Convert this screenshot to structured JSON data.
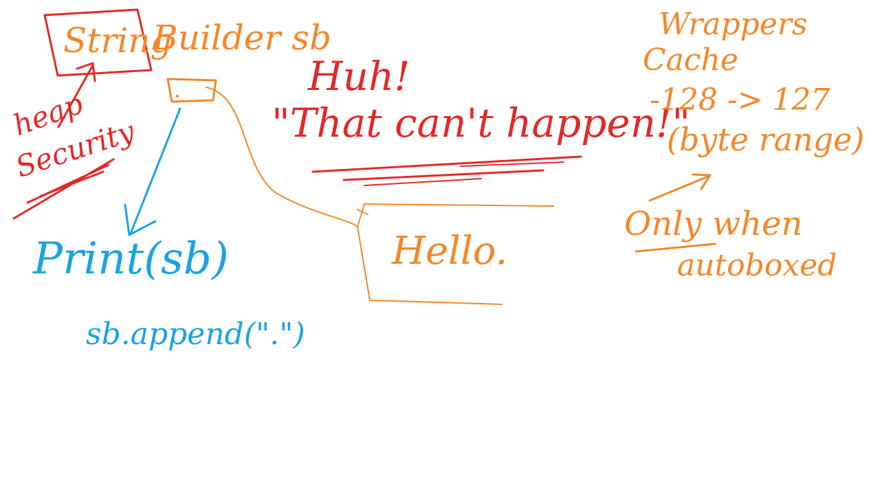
{
  "colors": {
    "orange": "#f5872a",
    "red": "#e42828",
    "blue": "#1aa3e0",
    "background": "#ffffff"
  },
  "left": {
    "type_word": "String",
    "builder_text": "Builder sb",
    "heap_label": "heap",
    "security_label": "Security",
    "print_call": "Print(sb)",
    "append_call": "sb.append(\".\")"
  },
  "center": {
    "huh": "Huh!",
    "quote": "\"That can't happen!\"",
    "hello": "Hello."
  },
  "right": {
    "wrappers": "Wrappers",
    "cache": "Cache",
    "range": "-128 -> 127",
    "byte_range": "(byte range)",
    "only_when": "Only when",
    "autoboxed": "autoboxed"
  }
}
